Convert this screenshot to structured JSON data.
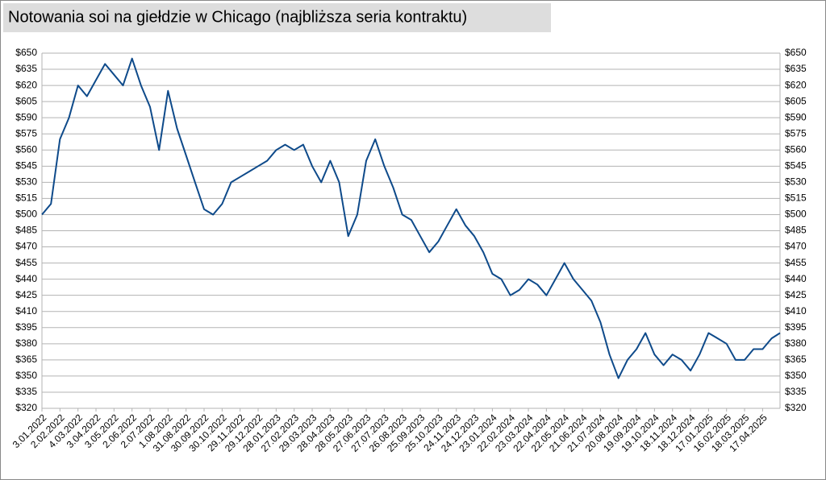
{
  "chart_data": {
    "type": "line",
    "title": "Notowania soi na giełdzie w Chicago (najbliższa seria kontraktu)",
    "color": "#0e4a8a",
    "grid": true,
    "x": [
      "3.01.2022",
      "18.01.2022",
      "2.02.2022",
      "17.02.2022",
      "4.03.2022",
      "19.03.2022",
      "3.04.2022",
      "18.04.2022",
      "3.05.2022",
      "18.05.2022",
      "2.06.2022",
      "17.06.2022",
      "2.07.2022",
      "17.07.2022",
      "1.08.2022",
      "16.08.2022",
      "31.08.2022",
      "15.09.2022",
      "30.09.2022",
      "15.10.2022",
      "30.10.2022",
      "14.11.2022",
      "29.11.2022",
      "14.12.2022",
      "29.12.2022",
      "13.01.2023",
      "28.01.2023",
      "12.02.2023",
      "27.02.2023",
      "14.03.2023",
      "29.03.2023",
      "13.04.2023",
      "28.04.2023",
      "13.05.2023",
      "28.05.2023",
      "12.06.2023",
      "27.06.2023",
      "12.07.2023",
      "27.07.2023",
      "11.08.2023",
      "26.08.2023",
      "10.09.2023",
      "25.09.2023",
      "10.10.2023",
      "25.10.2023",
      "9.11.2023",
      "24.11.2023",
      "9.12.2023",
      "24.12.2023",
      "8.01.2024",
      "23.01.2024",
      "7.02.2024",
      "22.02.2024",
      "8.03.2024",
      "23.03.2024",
      "7.04.2024",
      "22.04.2024",
      "7.05.2024",
      "22.05.2024",
      "6.06.2024",
      "21.06.2024",
      "6.07.2024",
      "21.07.2024",
      "5.08.2024",
      "20.08.2024",
      "4.09.2024",
      "19.09.2024",
      "4.10.2024",
      "19.10.2024",
      "3.11.2024",
      "18.11.2024",
      "3.12.2024",
      "18.12.2024",
      "2.01.2025",
      "17.01.2025",
      "1.02.2025",
      "16.02.2025",
      "3.03.2025",
      "18.03.2025",
      "2.04.2025",
      "17.04.2025",
      "2.05.2025",
      "16.05.2025"
    ],
    "values": [
      500,
      510,
      570,
      590,
      620,
      610,
      625,
      640,
      630,
      620,
      645,
      620,
      600,
      560,
      615,
      580,
      555,
      530,
      505,
      500,
      510,
      530,
      535,
      540,
      545,
      550,
      560,
      565,
      560,
      565,
      545,
      530,
      550,
      530,
      480,
      500,
      550,
      570,
      545,
      525,
      500,
      495,
      480,
      465,
      475,
      490,
      505,
      490,
      480,
      465,
      445,
      440,
      425,
      430,
      440,
      435,
      425,
      440,
      455,
      440,
      430,
      420,
      400,
      370,
      348,
      365,
      375,
      390,
      370,
      360,
      370,
      365,
      355,
      370,
      390,
      385,
      380,
      365,
      365,
      375,
      375,
      385,
      390
    ],
    "xlim": [
      "3.01.2022",
      "16.05.2025"
    ],
    "xticks": [
      "3.01.2022",
      "2.02.2022",
      "4.03.2022",
      "3.04.2022",
      "3.05.2022",
      "2.06.2022",
      "2.07.2022",
      "1.08.2022",
      "31.08.2022",
      "30.09.2022",
      "30.10.2022",
      "29.11.2022",
      "29.12.2022",
      "28.01.2023",
      "27.02.2023",
      "29.03.2023",
      "28.04.2023",
      "28.05.2023",
      "27.06.2023",
      "27.07.2023",
      "26.08.2023",
      "25.09.2023",
      "25.10.2023",
      "24.11.2023",
      "24.12.2023",
      "23.01.2024",
      "22.02.2024",
      "23.03.2024",
      "22.04.2024",
      "22.05.2024",
      "21.06.2024",
      "21.07.2024",
      "20.08.2024",
      "19.09.2024",
      "19.10.2024",
      "18.11.2024",
      "18.12.2024",
      "17.01.2025",
      "16.02.2025",
      "18.03.2025",
      "17.04.2025"
    ],
    "ylim": [
      320,
      650
    ],
    "yticks": [
      {
        "value": 320,
        "label": "$320"
      },
      {
        "value": 335,
        "label": "$335"
      },
      {
        "value": 350,
        "label": "$350"
      },
      {
        "value": 365,
        "label": "$365"
      },
      {
        "value": 380,
        "label": "$380"
      },
      {
        "value": 395,
        "label": "$395"
      },
      {
        "value": 410,
        "label": "$410"
      },
      {
        "value": 425,
        "label": "$425"
      },
      {
        "value": 440,
        "label": "$440"
      },
      {
        "value": 455,
        "label": "$455"
      },
      {
        "value": 470,
        "label": "$470"
      },
      {
        "value": 485,
        "label": "$485"
      },
      {
        "value": 500,
        "label": "$500"
      },
      {
        "value": 515,
        "label": "$515"
      },
      {
        "value": 530,
        "label": "$530"
      },
      {
        "value": 545,
        "label": "$545"
      },
      {
        "value": 560,
        "label": "$560"
      },
      {
        "value": 575,
        "label": "$575"
      },
      {
        "value": 590,
        "label": "$590"
      },
      {
        "value": 605,
        "label": "$605"
      },
      {
        "value": 620,
        "label": "$620"
      },
      {
        "value": 635,
        "label": "$635"
      },
      {
        "value": 650,
        "label": "$650"
      }
    ]
  }
}
